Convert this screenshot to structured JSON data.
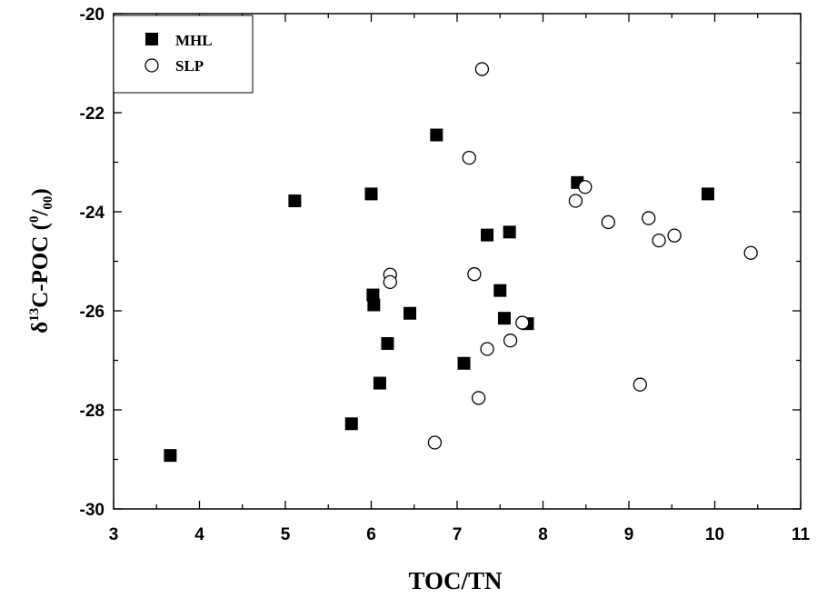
{
  "chart_data": {
    "type": "scatter",
    "xlabel": "TOC/TN",
    "ylabel": {
      "delta": "δ",
      "sup13": "13",
      "body": "C-POC (",
      "sup0": "0",
      "slash": "/",
      "sub00": "00",
      "close": ")"
    },
    "xlim": [
      3,
      11
    ],
    "ylim": [
      -30,
      -20
    ],
    "xticks": [
      "3",
      "4",
      "5",
      "6",
      "7",
      "8",
      "9",
      "10",
      "11"
    ],
    "yticks": [
      "-30",
      "-28",
      "-26",
      "-24",
      "-22",
      "-20"
    ],
    "grid": false,
    "legend_position": "top-left",
    "series": [
      {
        "name": "MHL",
        "marker": "filled-square",
        "color": "#000000",
        "points": [
          [
            3.66,
            -28.92
          ],
          [
            5.11,
            -23.78
          ],
          [
            5.77,
            -28.28
          ],
          [
            6.0,
            -23.64
          ],
          [
            6.02,
            -25.68
          ],
          [
            6.03,
            -25.88
          ],
          [
            6.1,
            -27.46
          ],
          [
            6.19,
            -26.66
          ],
          [
            6.45,
            -26.05
          ],
          [
            6.76,
            -22.45
          ],
          [
            7.08,
            -27.06
          ],
          [
            7.35,
            -24.47
          ],
          [
            7.5,
            -25.59
          ],
          [
            7.55,
            -26.15
          ],
          [
            7.61,
            -24.41
          ],
          [
            7.82,
            -26.26
          ],
          [
            8.4,
            -23.41
          ],
          [
            9.92,
            -23.64
          ]
        ]
      },
      {
        "name": "SLP",
        "marker": "open-circle",
        "color": "#000000",
        "points": [
          [
            6.22,
            -25.27
          ],
          [
            6.22,
            -25.42
          ],
          [
            6.74,
            -28.66
          ],
          [
            7.14,
            -22.91
          ],
          [
            7.2,
            -25.26
          ],
          [
            7.25,
            -27.76
          ],
          [
            7.29,
            -21.12
          ],
          [
            7.35,
            -26.77
          ],
          [
            7.62,
            -26.6
          ],
          [
            7.76,
            -26.24
          ],
          [
            8.38,
            -23.78
          ],
          [
            8.49,
            -23.5
          ],
          [
            8.76,
            -24.21
          ],
          [
            9.13,
            -27.49
          ],
          [
            9.23,
            -24.13
          ],
          [
            9.35,
            -24.58
          ],
          [
            9.53,
            -24.48
          ],
          [
            10.42,
            -24.83
          ]
        ]
      }
    ]
  }
}
